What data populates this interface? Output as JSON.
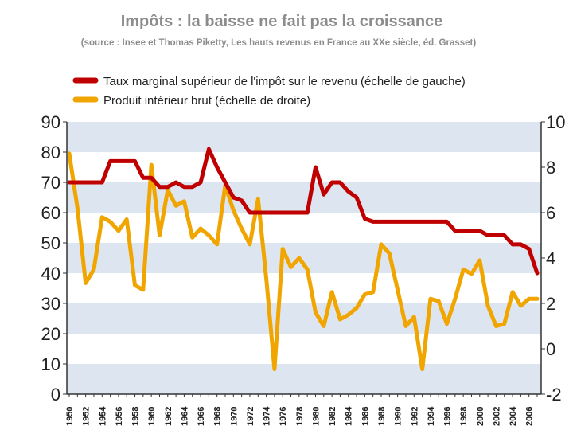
{
  "chart_data": {
    "type": "line",
    "title": "Impôts : la baisse ne fait pas la croissance",
    "subtitle": "(source : Insee et Thomas Piketty, Les hauts revenus en France au XXe siècle, éd. Grasset)",
    "x": [
      1950,
      1951,
      1952,
      1953,
      1954,
      1955,
      1956,
      1957,
      1958,
      1959,
      1960,
      1961,
      1962,
      1963,
      1964,
      1965,
      1966,
      1967,
      1968,
      1969,
      1970,
      1971,
      1972,
      1973,
      1974,
      1975,
      1976,
      1977,
      1978,
      1979,
      1980,
      1981,
      1982,
      1983,
      1984,
      1985,
      1986,
      1987,
      1988,
      1989,
      1990,
      1991,
      1992,
      1993,
      1994,
      1995,
      1996,
      1997,
      1998,
      1999,
      2000,
      2001,
      2002,
      2003,
      2004,
      2005,
      2006,
      2007
    ],
    "x_tick_labels": [
      "1950",
      "1952",
      "1954",
      "1956",
      "1958",
      "1960",
      "1962",
      "1964",
      "1966",
      "1968",
      "1970",
      "1972",
      "1974",
      "1976",
      "1978",
      "1980",
      "1982",
      "1984",
      "1986",
      "1988",
      "1990",
      "1992",
      "1994",
      "1996",
      "1998",
      "2000",
      "2002",
      "2004",
      "2006"
    ],
    "left_axis": {
      "ylim": [
        0,
        90
      ],
      "ticks": [
        "0",
        "10",
        "20",
        "30",
        "40",
        "50",
        "60",
        "70",
        "80",
        "90"
      ]
    },
    "right_axis": {
      "ylim": [
        -2,
        10
      ],
      "ticks": [
        "-2",
        "0",
        "2",
        "4",
        "6",
        "8",
        "10"
      ]
    },
    "grid": "horizontal bands",
    "legend_position": "top",
    "series": [
      {
        "name": "Taux marginal supérieur de l'impôt sur le revenu (échelle de gauche)",
        "axis": "left",
        "color": "#c00000",
        "values": [
          70,
          70,
          70,
          70,
          70,
          77,
          77,
          77,
          77,
          71.5,
          71.5,
          68.5,
          68.5,
          70,
          68.5,
          68.5,
          70,
          81,
          75,
          70,
          65,
          64,
          60,
          60,
          60,
          60,
          60,
          60,
          60,
          60,
          75,
          66,
          70,
          70,
          67,
          65,
          58,
          57,
          57,
          57,
          57,
          57,
          57,
          57,
          57,
          57,
          57,
          54,
          54,
          54,
          54,
          52.5,
          52.5,
          52.5,
          49.5,
          49.5,
          48,
          40
        ]
      },
      {
        "name": "Produit intérieur brut (échelle de droite)",
        "axis": "right",
        "color": "#f0a500",
        "values": [
          8.6,
          6.2,
          2.9,
          3.5,
          5.8,
          5.6,
          5.2,
          5.7,
          2.8,
          2.6,
          8.1,
          5,
          7,
          6.3,
          6.5,
          4.9,
          5.3,
          5,
          4.6,
          7.2,
          6.1,
          5.3,
          4.6,
          6.6,
          3.1,
          -0.9,
          4.4,
          3.6,
          4,
          3.5,
          1.6,
          1,
          2.5,
          1.3,
          1.5,
          1.8,
          2.4,
          2.5,
          4.6,
          4.2,
          2.6,
          1,
          1.4,
          -0.9,
          2.2,
          2.1,
          1.1,
          2.2,
          3.5,
          3.3,
          3.9,
          1.9,
          1,
          1.1,
          2.5,
          1.9,
          2.2,
          2.2
        ]
      }
    ]
  }
}
